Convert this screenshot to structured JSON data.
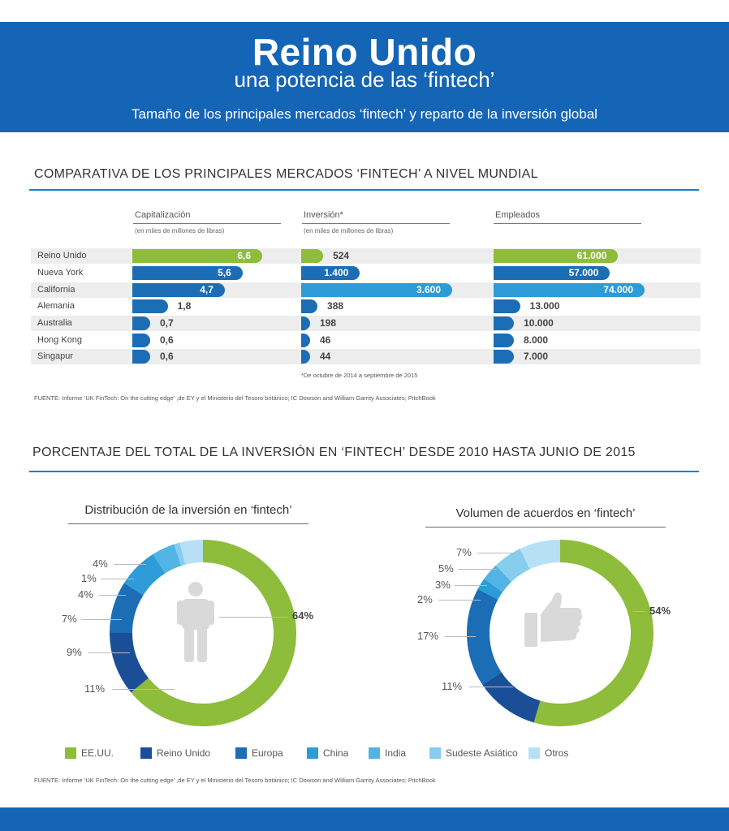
{
  "header": {
    "title": "Reino Unido",
    "subtitle": "una potencia de las ‘fintech’",
    "description": "Tamaño de los principales mercados ‘fintech’ y reparto de la inversión global"
  },
  "section1": {
    "title": "COMPARATIVA DE LOS PRINCIPALES MERCADOS ‘FINTECH’ A NIVEL MUNDIAL",
    "footnote": "*De octubre de 2014 a septiembre de 2015",
    "source": "FUENTE: Informe ‘UK FinTech: On the cutting edge’ ,de EY y el Ministerio del Tesoro británico; IC Dowson and William Garrity Associates; PitchBook"
  },
  "section2": {
    "title": "PORCENTAJE DEL TOTAL DE LA INVERSIÓN EN ‘FINTECH’ DESDE 2010 HASTA JUNIO DE 2015",
    "source": "FUENTE: Informe ‘UK FinTech: On the cutting edge’ ,de EY y el Ministerio del Tesoro británico; IC Dowson and William Garrity Associates; PitchBook"
  },
  "colors": {
    "green": "#8dbd3a",
    "blue_dark": "#1a4f98",
    "blue_mid": "#1b6db5",
    "blue_light": "#2d9bd8",
    "header": "#1565b6"
  },
  "chart_data": [
    {
      "type": "bar",
      "title": "Capitalización",
      "subtitle": "(en miles de millones de libras)",
      "categories": [
        "Reino Unido",
        "Nueva York",
        "California",
        "Alemania",
        "Australia",
        "Hong Kong",
        "Singapur"
      ],
      "values": [
        6.6,
        5.6,
        4.7,
        1.8,
        0.7,
        0.6,
        0.6
      ],
      "labels": [
        "6,6",
        "5,6",
        "4,7",
        "1,8",
        "0,7",
        "0,6",
        "0,6"
      ],
      "max": 6.6
    },
    {
      "type": "bar",
      "title": "Inversión*",
      "subtitle": "(en miles de millones de libras)",
      "categories": [
        "Reino Unido",
        "Nueva York",
        "California",
        "Alemania",
        "Australia",
        "Hong Kong",
        "Singapur"
      ],
      "values": [
        524,
        1400,
        3600,
        388,
        198,
        46,
        44
      ],
      "labels": [
        "524",
        "1.400",
        "3.600",
        "388",
        "198",
        "46",
        "44"
      ],
      "max": 3600
    },
    {
      "type": "bar",
      "title": "Empleados",
      "categories": [
        "Reino Unido",
        "Nueva York",
        "California",
        "Alemania",
        "Australia",
        "Hong Kong",
        "Singapur"
      ],
      "values": [
        61000,
        57000,
        74000,
        13000,
        10000,
        8000,
        7000
      ],
      "labels": [
        "61.000",
        "57.000",
        "74.000",
        "13.000",
        "10.000",
        "8.000",
        "7.000"
      ],
      "max": 74000
    },
    {
      "type": "pie",
      "title": "Distribución de la inversión en ‘fintech’",
      "categories": [
        "EE.UU.",
        "Reino Unido",
        "Europa",
        "China",
        "India",
        "Sudeste Asiático",
        "Otros"
      ],
      "values": [
        64,
        11,
        9,
        7,
        4,
        1,
        4
      ],
      "labels": [
        "64%",
        "11%",
        "9%",
        "7%",
        "4%",
        "1%",
        "4%"
      ]
    },
    {
      "type": "pie",
      "title": "Volumen de acuerdos en ‘fintech’",
      "categories": [
        "EE.UU.",
        "Reino Unido",
        "Europa",
        "China",
        "India",
        "Sudeste Asiático",
        "Otros"
      ],
      "values": [
        54,
        11,
        17,
        2,
        3,
        5,
        7
      ],
      "labels": [
        "54%",
        "11%",
        "17%",
        "2%",
        "3%",
        "5%",
        "7%"
      ]
    }
  ],
  "legend": [
    {
      "label": "EE.UU.",
      "color": "#8dbd3a"
    },
    {
      "label": "Reino  Unido",
      "color": "#1a4f98"
    },
    {
      "label": "Europa",
      "color": "#1b6db5"
    },
    {
      "label": "China",
      "color": "#2d9bd8"
    },
    {
      "label": "India",
      "color": "#52b3e5"
    },
    {
      "label": "Sudeste Asiático",
      "color": "#86cdee"
    },
    {
      "label": "Otros",
      "color": "#b7e0f5"
    }
  ]
}
